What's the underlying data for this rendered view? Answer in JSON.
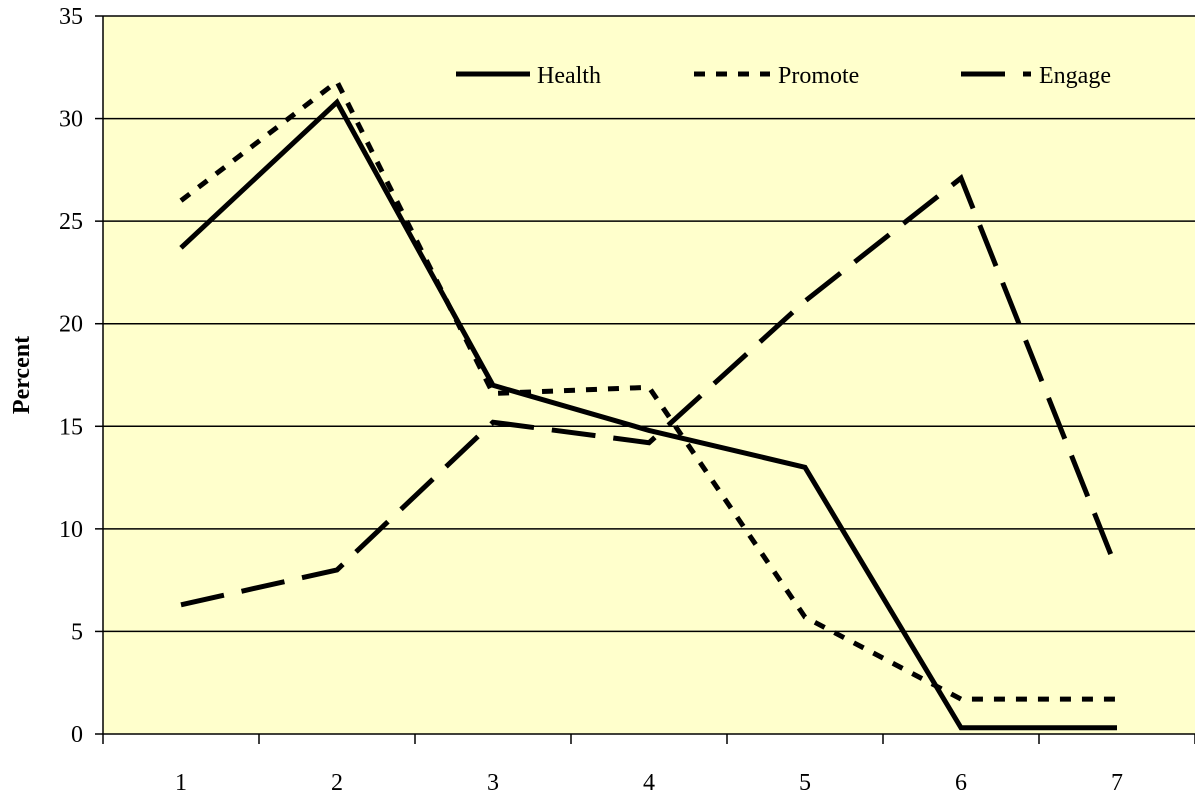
{
  "colors": {
    "plot_background": "#ffffcc",
    "line_color": "#000000",
    "gridline_color": "#000000"
  },
  "chart_data": {
    "type": "line",
    "title": "",
    "xlabel": "",
    "ylabel": "Percent",
    "categories": [
      "1",
      "2",
      "3",
      "4",
      "5",
      "6",
      "7"
    ],
    "ylim": [
      0,
      35
    ],
    "yticks": [
      0,
      5,
      10,
      15,
      20,
      25,
      30,
      35
    ],
    "grid": true,
    "legend_position": "top-right",
    "series": [
      {
        "name": "Health",
        "line_style": "solid",
        "values": [
          23.7,
          30.8,
          17.0,
          14.8,
          13.0,
          0.3,
          0.3
        ]
      },
      {
        "name": "Promote",
        "line_style": "dotted",
        "values": [
          26.0,
          31.8,
          16.6,
          16.9,
          5.7,
          1.7,
          1.7
        ]
      },
      {
        "name": "Engage",
        "line_style": "dashed",
        "values": [
          6.3,
          8.0,
          15.2,
          14.2,
          21.1,
          27.1,
          8.0
        ]
      }
    ]
  }
}
